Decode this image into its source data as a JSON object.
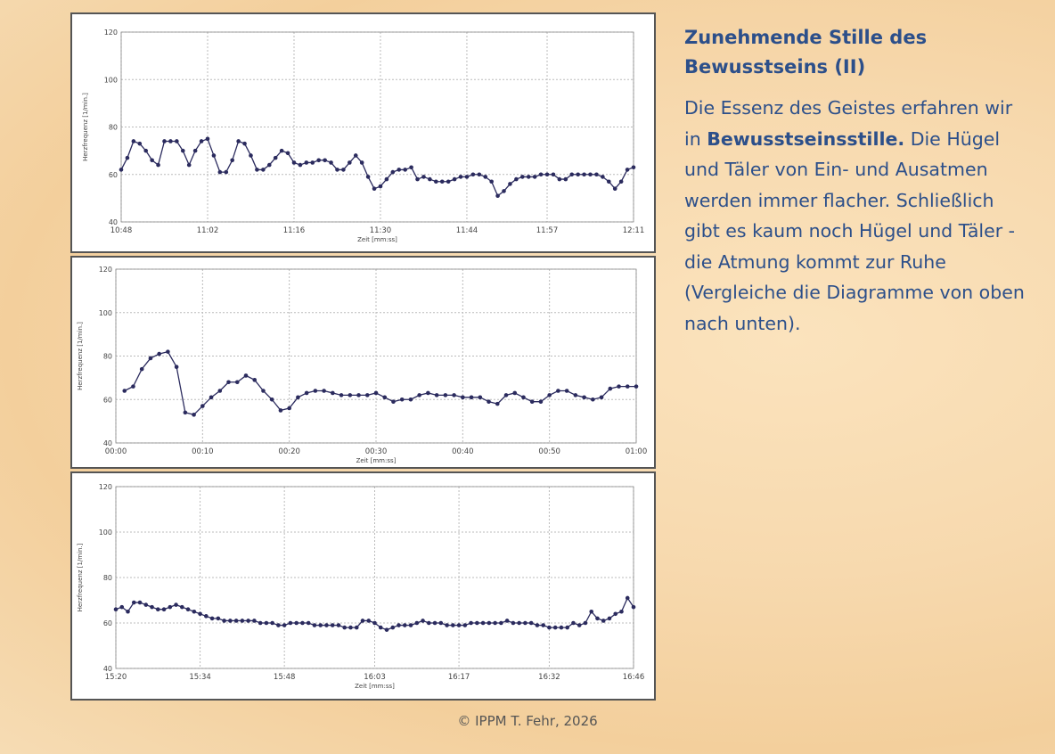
{
  "chart_data": [
    {
      "type": "line",
      "y_label": "Herzfrequenz [1/min.]",
      "x_label": "Zeit [mm:ss]",
      "color": "#2b2b5e",
      "grid": true,
      "xlim": [
        0,
        83
      ],
      "ylim": [
        40,
        120
      ],
      "yticks": [
        40,
        60,
        80,
        100,
        120
      ],
      "xticks": [
        {
          "value": 0,
          "label": "10:48"
        },
        {
          "value": 14,
          "label": "11:02"
        },
        {
          "value": 28,
          "label": "11:16"
        },
        {
          "value": 42,
          "label": "11:30"
        },
        {
          "value": 56,
          "label": "11:44"
        },
        {
          "value": 69,
          "label": "11:57"
        },
        {
          "value": 83,
          "label": "12:11"
        }
      ],
      "x": [
        0,
        1,
        2,
        3,
        4,
        5,
        6,
        7,
        8,
        9,
        10,
        11,
        12,
        13,
        14,
        15,
        16,
        17,
        18,
        19,
        20,
        21,
        22,
        23,
        24,
        25,
        26,
        27,
        28,
        29,
        30,
        31,
        32,
        33,
        34,
        35,
        36,
        37,
        38,
        39,
        40,
        41,
        42,
        43,
        44,
        45,
        46,
        47,
        48,
        49,
        50,
        51,
        52,
        53,
        54,
        55,
        56,
        57,
        58,
        59,
        60,
        61,
        62,
        63,
        64,
        65,
        66,
        67,
        68,
        69,
        70,
        71,
        72,
        73,
        74,
        75,
        76,
        77,
        78,
        79,
        80,
        81,
        82,
        83
      ],
      "values": [
        62,
        67,
        74,
        73,
        70,
        66,
        64,
        74,
        74,
        74,
        70,
        64,
        70,
        74,
        75,
        68,
        61,
        61,
        66,
        74,
        73,
        68,
        62,
        62,
        64,
        67,
        70,
        69,
        65,
        64,
        65,
        65,
        66,
        66,
        65,
        62,
        62,
        65,
        68,
        65,
        59,
        54,
        55,
        58,
        61,
        62,
        62,
        63,
        58,
        59,
        58,
        57,
        57,
        57,
        58,
        59,
        59,
        60,
        60,
        59,
        57,
        51,
        53,
        56,
        58,
        59,
        59,
        59,
        60,
        60,
        60,
        58,
        58,
        60,
        60,
        60,
        60,
        60,
        59,
        57,
        54,
        57,
        62,
        63
      ]
    },
    {
      "type": "line",
      "y_label": "Herzfrequenz [1/min.]",
      "x_label": "Zeit [mm:ss]",
      "color": "#2b2b5e",
      "grid": true,
      "xlim": [
        0,
        60
      ],
      "ylim": [
        40,
        120
      ],
      "yticks": [
        40,
        60,
        80,
        100,
        120
      ],
      "xticks": [
        {
          "value": 0,
          "label": "00:00"
        },
        {
          "value": 10,
          "label": "00:10"
        },
        {
          "value": 20,
          "label": "00:20"
        },
        {
          "value": 30,
          "label": "00:30"
        },
        {
          "value": 40,
          "label": "00:40"
        },
        {
          "value": 50,
          "label": "00:50"
        },
        {
          "value": 60,
          "label": "01:00"
        }
      ],
      "x": [
        1,
        2,
        3,
        4,
        5,
        6,
        7,
        8,
        9,
        10,
        11,
        12,
        13,
        14,
        15,
        16,
        17,
        18,
        19,
        20,
        21,
        22,
        23,
        24,
        25,
        26,
        27,
        28,
        29,
        30,
        31,
        32,
        33,
        34,
        35,
        36,
        37,
        38,
        39,
        40,
        41,
        42,
        43,
        44,
        45,
        46,
        47,
        48,
        49,
        50,
        51,
        52,
        53,
        54,
        55,
        56,
        57,
        58,
        59,
        60
      ],
      "values": [
        64,
        66,
        74,
        79,
        81,
        82,
        75,
        54,
        53,
        57,
        61,
        64,
        68,
        68,
        71,
        69,
        64,
        60,
        55,
        56,
        61,
        63,
        64,
        64,
        63,
        62,
        62,
        62,
        62,
        63,
        61,
        59,
        60,
        60,
        62,
        63,
        62,
        62,
        62,
        61,
        61,
        61,
        59,
        58,
        62,
        63,
        61,
        59,
        59,
        62,
        64,
        64,
        62,
        61,
        60,
        61,
        65,
        66,
        66,
        66
      ]
    },
    {
      "type": "line",
      "y_label": "Herzfrequenz [1/min.]",
      "x_label": "Zeit [mm:ss]",
      "color": "#2b2b5e",
      "grid": true,
      "xlim": [
        0,
        86
      ],
      "ylim": [
        40,
        120
      ],
      "yticks": [
        40,
        60,
        80,
        100,
        120
      ],
      "xticks": [
        {
          "value": 0,
          "label": "15:20"
        },
        {
          "value": 14,
          "label": "15:34"
        },
        {
          "value": 28,
          "label": "15:48"
        },
        {
          "value": 43,
          "label": "16:03"
        },
        {
          "value": 57,
          "label": "16:17"
        },
        {
          "value": 72,
          "label": "16:32"
        },
        {
          "value": 86,
          "label": "16:46"
        }
      ],
      "x": [
        0,
        1,
        2,
        3,
        4,
        5,
        6,
        7,
        8,
        9,
        10,
        11,
        12,
        13,
        14,
        15,
        16,
        17,
        18,
        19,
        20,
        21,
        22,
        23,
        24,
        25,
        26,
        27,
        28,
        29,
        30,
        31,
        32,
        33,
        34,
        35,
        36,
        37,
        38,
        39,
        40,
        41,
        42,
        43,
        44,
        45,
        46,
        47,
        48,
        49,
        50,
        51,
        52,
        53,
        54,
        55,
        56,
        57,
        58,
        59,
        60,
        61,
        62,
        63,
        64,
        65,
        66,
        67,
        68,
        69,
        70,
        71,
        72,
        73,
        74,
        75,
        76,
        77,
        78,
        79,
        80,
        81,
        82,
        83,
        84,
        85,
        86
      ],
      "values": [
        66,
        67,
        65,
        69,
        69,
        68,
        67,
        66,
        66,
        67,
        68,
        67,
        66,
        65,
        64,
        63,
        62,
        62,
        61,
        61,
        61,
        61,
        61,
        61,
        60,
        60,
        60,
        59,
        59,
        60,
        60,
        60,
        60,
        59,
        59,
        59,
        59,
        59,
        58,
        58,
        58,
        61,
        61,
        60,
        58,
        57,
        58,
        59,
        59,
        59,
        60,
        61,
        60,
        60,
        60,
        59,
        59,
        59,
        59,
        60,
        60,
        60,
        60,
        60,
        60,
        61,
        60,
        60,
        60,
        60,
        59,
        59,
        58,
        58,
        58,
        58,
        60,
        59,
        60,
        65,
        62,
        61,
        62,
        64,
        65,
        71,
        67
      ]
    }
  ],
  "slide": {
    "title": "Zunehmende Stille des Bewusstseins (II)",
    "body": [
      "Die Essenz des Geistes erfahren wir in ",
      "Bewusstseinsstille.",
      " Die Hügel und Täler von Ein- und Ausatmen werden immer flacher. Schließlich gibt es kaum noch Hügel und Täler - die Atmung kommt zur Ruhe (Vergleiche die Diagramme von oben nach unten)."
    ],
    "footer": "© IPPM T. Fehr, 2026"
  }
}
